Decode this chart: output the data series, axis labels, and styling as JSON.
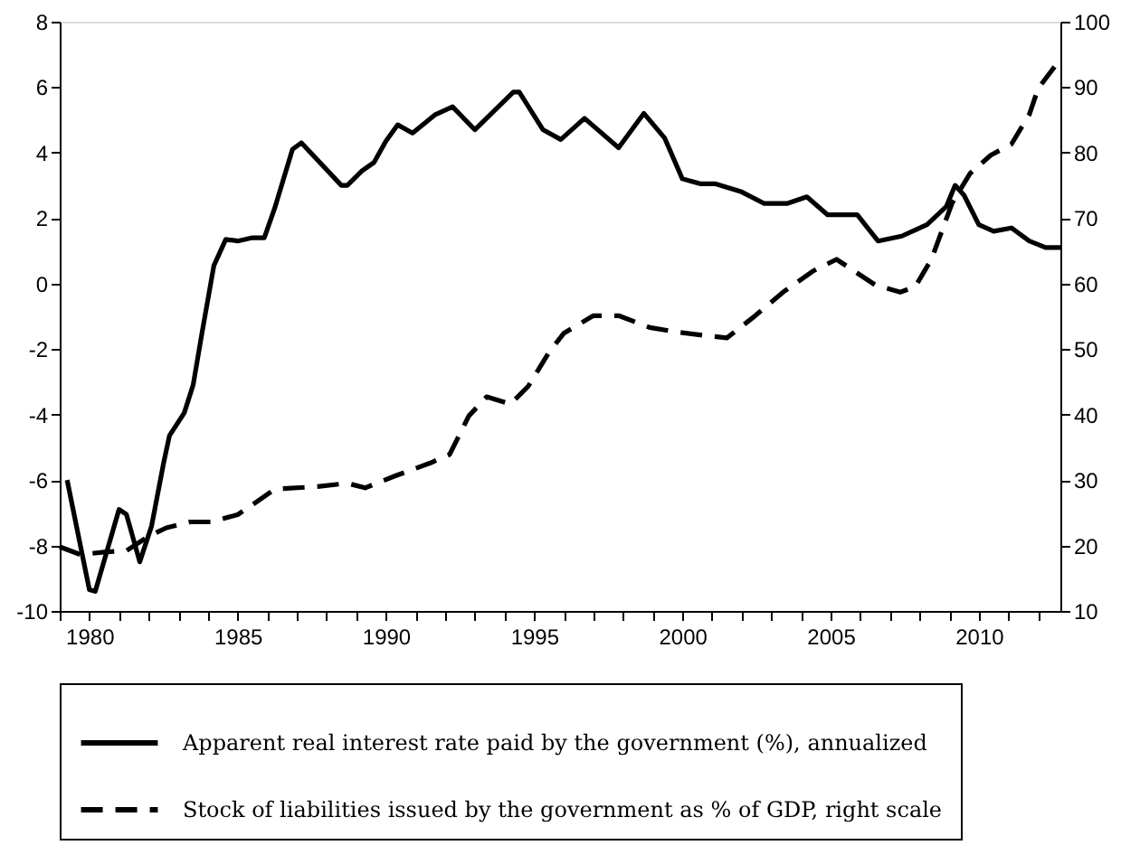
{
  "chart_data": {
    "type": "line",
    "xlim": [
      1979,
      2012.75
    ],
    "xticks": [
      {
        "value": 1979,
        "label": null
      },
      1980,
      {
        "value": 1981,
        "label": null
      },
      {
        "value": 1982,
        "label": null
      },
      {
        "value": 1983,
        "label": null
      },
      {
        "value": 1984,
        "label": null
      },
      1985,
      {
        "value": 1986,
        "label": null
      },
      {
        "value": 1987,
        "label": null
      },
      {
        "value": 1988,
        "label": null
      },
      {
        "value": 1989,
        "label": null
      },
      1990,
      {
        "value": 1991,
        "label": null
      },
      {
        "value": 1992,
        "label": null
      },
      {
        "value": 1993,
        "label": null
      },
      {
        "value": 1994,
        "label": null
      },
      1995,
      {
        "value": 1996,
        "label": null
      },
      {
        "value": 1997,
        "label": null
      },
      {
        "value": 1998,
        "label": null
      },
      {
        "value": 1999,
        "label": null
      },
      2000,
      {
        "value": 2001,
        "label": null
      },
      {
        "value": 2002,
        "label": null
      },
      {
        "value": 2003,
        "label": null
      },
      {
        "value": 2004,
        "label": null
      },
      2005,
      {
        "value": 2006,
        "label": null
      },
      {
        "value": 2007,
        "label": null
      },
      {
        "value": 2008,
        "label": null
      },
      {
        "value": 2009,
        "label": null
      },
      2010,
      {
        "value": 2011,
        "label": null
      },
      {
        "value": 2012,
        "label": null
      }
    ],
    "ylim": [
      -10,
      8
    ],
    "yticks": [
      -10,
      -8,
      -6,
      -4,
      -2,
      0,
      2,
      4,
      6,
      8
    ],
    "y2lim": [
      10,
      100
    ],
    "y2ticks": [
      10,
      20,
      30,
      40,
      50,
      60,
      70,
      80,
      90,
      100
    ],
    "grid": false,
    "legend": "bottom",
    "series": [
      {
        "name": "Apparent real interest rate paid by the government (%), annualized",
        "color": "#000000",
        "line_style": "solid",
        "x": [
          1979.25,
          1980.0,
          1980.2,
          1981.0,
          1981.25,
          1981.7,
          1982.1,
          1982.5,
          1982.7,
          1983.2,
          1983.5,
          1983.8,
          1984.2,
          1984.6,
          1985.0,
          1985.5,
          1985.9,
          1986.25,
          1986.85,
          1987.15,
          1988.5,
          1988.7,
          1989.2,
          1989.6,
          1990.0,
          1990.4,
          1990.9,
          1991.65,
          1992.25,
          1993.0,
          1994.3,
          1994.5,
          1995.3,
          1995.9,
          1996.7,
          1997.85,
          1998.7,
          1999.4,
          2000.0,
          2000.6,
          2001.1,
          2002.0,
          2002.75,
          2003.55,
          2004.2,
          2004.9,
          2005.9,
          2006.6,
          2007.4,
          2008.25,
          2008.9,
          2009.2,
          2009.5,
          2010.0,
          2010.5,
          2011.1,
          2011.7,
          2012.25,
          2012.75
        ],
        "values": [
          -6.0,
          -9.35,
          -9.4,
          -6.9,
          -7.05,
          -8.5,
          -7.4,
          -5.5,
          -4.65,
          -3.95,
          -3.1,
          -1.5,
          0.55,
          1.35,
          1.3,
          1.4,
          1.4,
          2.3,
          4.1,
          4.3,
          3.0,
          3.0,
          3.45,
          3.7,
          4.35,
          4.85,
          4.6,
          5.15,
          5.4,
          4.7,
          5.85,
          5.85,
          4.7,
          4.4,
          5.05,
          4.15,
          5.2,
          4.45,
          3.2,
          3.05,
          3.05,
          2.8,
          2.45,
          2.45,
          2.65,
          2.1,
          2.1,
          1.3,
          1.45,
          1.8,
          2.35,
          3.0,
          2.7,
          1.8,
          1.6,
          1.7,
          1.3,
          1.1,
          1.1
        ]
      },
      {
        "name": "Stock of liabilities issued by the government as % of GDP, right scale",
        "color": "#000000",
        "line_style": "dashed",
        "axis": "y2",
        "x": [
          1979.0,
          1979.7,
          1980.5,
          1981.25,
          1982.0,
          1982.6,
          1983.4,
          1984.1,
          1985.0,
          1985.4,
          1986.25,
          1987.7,
          1988.7,
          1989.3,
          1990.3,
          1991.5,
          1992.15,
          1992.8,
          1993.4,
          1994.2,
          1994.8,
          1995.5,
          1996.0,
          1997.0,
          1997.85,
          1998.9,
          1999.8,
          2000.9,
          2001.5,
          2002.35,
          2003.4,
          2004.4,
          2005.2,
          2005.8,
          2006.5,
          2007.35,
          2007.85,
          2008.4,
          2009.1,
          2009.7,
          2010.4,
          2011.1,
          2011.7,
          2012.0,
          2012.6
        ],
        "values": [
          19.8,
          18.6,
          19.0,
          19.2,
          21.4,
          22.7,
          23.6,
          23.6,
          24.7,
          25.9,
          28.6,
          29.0,
          29.5,
          28.8,
          30.6,
          32.6,
          33.9,
          39.8,
          42.7,
          41.6,
          44.3,
          49.5,
          52.4,
          55.1,
          55.1,
          53.3,
          52.6,
          52.0,
          51.7,
          54.7,
          58.7,
          61.9,
          63.7,
          61.9,
          59.8,
          58.7,
          59.5,
          63.7,
          72.3,
          76.8,
          79.6,
          81.3,
          85.8,
          89.8,
          93.4
        ]
      }
    ]
  }
}
